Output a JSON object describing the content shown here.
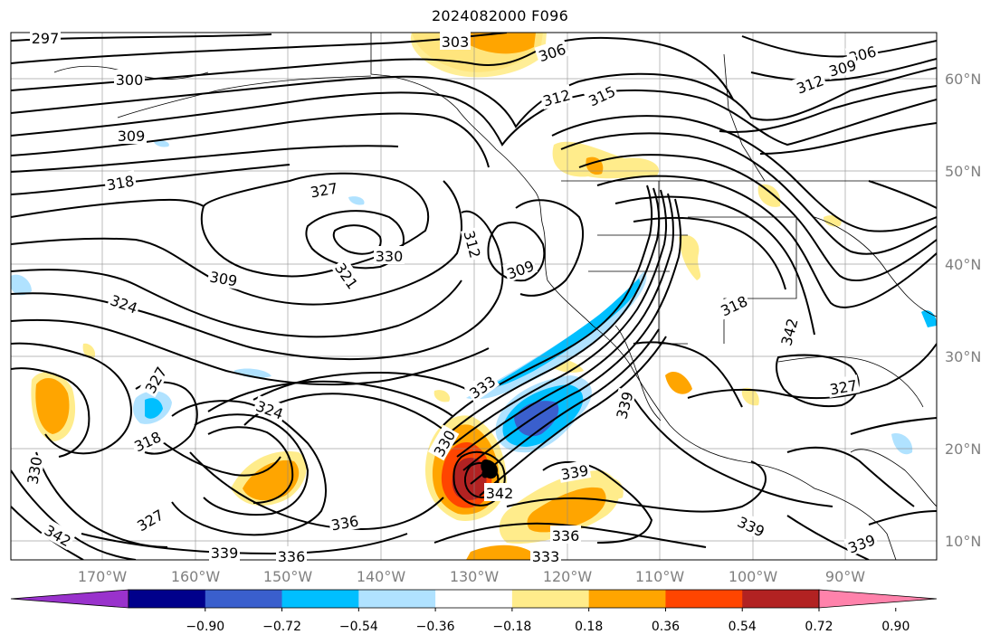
{
  "title": "2024082000 F096",
  "map": {
    "lon_labels": [
      "170°W",
      "160°W",
      "150°W",
      "140°W",
      "130°W",
      "120°W",
      "110°W",
      "100°W",
      "90°W"
    ],
    "lat_labels": [
      "60°N",
      "50°N",
      "40°N",
      "30°N",
      "20°N",
      "10°N"
    ],
    "contour_labels": [
      "297",
      "303",
      "306",
      "306",
      "309",
      "300",
      "309",
      "312",
      "315",
      "312",
      "309",
      "318",
      "327",
      "330",
      "312",
      "309",
      "321",
      "324",
      "318",
      "342",
      "333",
      "327",
      "327",
      "324",
      "318",
      "330",
      "330",
      "339",
      "339",
      "342",
      "327",
      "342",
      "336",
      "336",
      "339",
      "339",
      "336",
      "333",
      "339"
    ],
    "storm_marker": "tropical-cyclone-center"
  },
  "colorbar": {
    "colors": [
      "#9932cc",
      "#00008b",
      "#3a5fcd",
      "#00bfff",
      "#b0e2ff",
      "#ffffff",
      "#ffec8b",
      "#ffa500",
      "#ff4500",
      "#b22222",
      "#ff82ab"
    ],
    "tick_labels": [
      "−0.90",
      "−0.72",
      "−0.54",
      "−0.36",
      "−0.18",
      "0.18",
      "0.36",
      "0.54",
      "0.72",
      "0.90"
    ]
  }
}
